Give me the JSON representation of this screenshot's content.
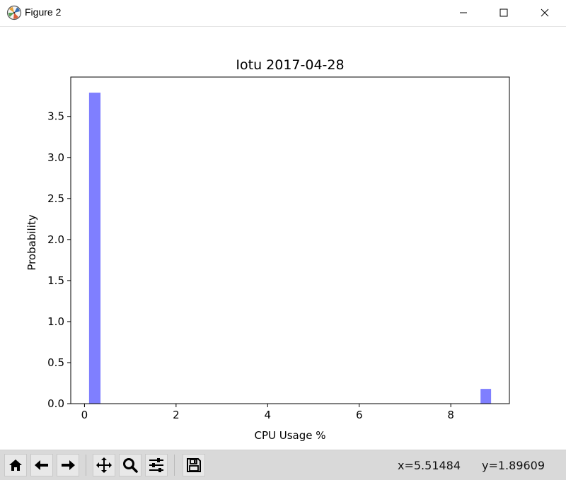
{
  "window": {
    "title": "Figure 2",
    "controls": [
      "minimize",
      "maximize",
      "close"
    ],
    "icon": "matplotlib-logo-icon"
  },
  "chart_data": {
    "type": "bar",
    "title": "Iotu 2017-04-28",
    "xlabel": "CPU Usage %",
    "ylabel": "Probability",
    "xlim": [
      -0.3,
      9.28
    ],
    "ylim": [
      0,
      3.98
    ],
    "xticks": [
      0,
      2,
      4,
      6,
      8
    ],
    "xtick_labels": [
      "0",
      "2",
      "4",
      "6",
      "8"
    ],
    "yticks": [
      0.0,
      0.5,
      1.0,
      1.5,
      2.0,
      2.5,
      3.0,
      3.5
    ],
    "ytick_labels": [
      "0.0",
      "0.5",
      "1.0",
      "1.5",
      "2.0",
      "2.5",
      "3.0",
      "3.5"
    ],
    "bar_color": "#7f7fff",
    "bars": [
      {
        "x0": 0.1,
        "x1": 0.35,
        "value": 3.79
      },
      {
        "x0": 8.65,
        "x1": 8.88,
        "value": 0.18
      }
    ],
    "grid": false,
    "legend": "none"
  },
  "toolbar": {
    "buttons": [
      {
        "name": "home-button",
        "icon": "home-icon"
      },
      {
        "name": "back-button",
        "icon": "arrow-left-icon"
      },
      {
        "name": "forward-button",
        "icon": "arrow-right-icon"
      },
      {
        "name": "pan-button",
        "icon": "move-icon"
      },
      {
        "name": "zoom-button",
        "icon": "magnifier-icon"
      },
      {
        "name": "configure-subplots-button",
        "icon": "sliders-icon"
      },
      {
        "name": "save-button",
        "icon": "floppy-disk-icon"
      }
    ],
    "x_readout": "x=5.51484",
    "y_readout": "y=1.89609"
  }
}
